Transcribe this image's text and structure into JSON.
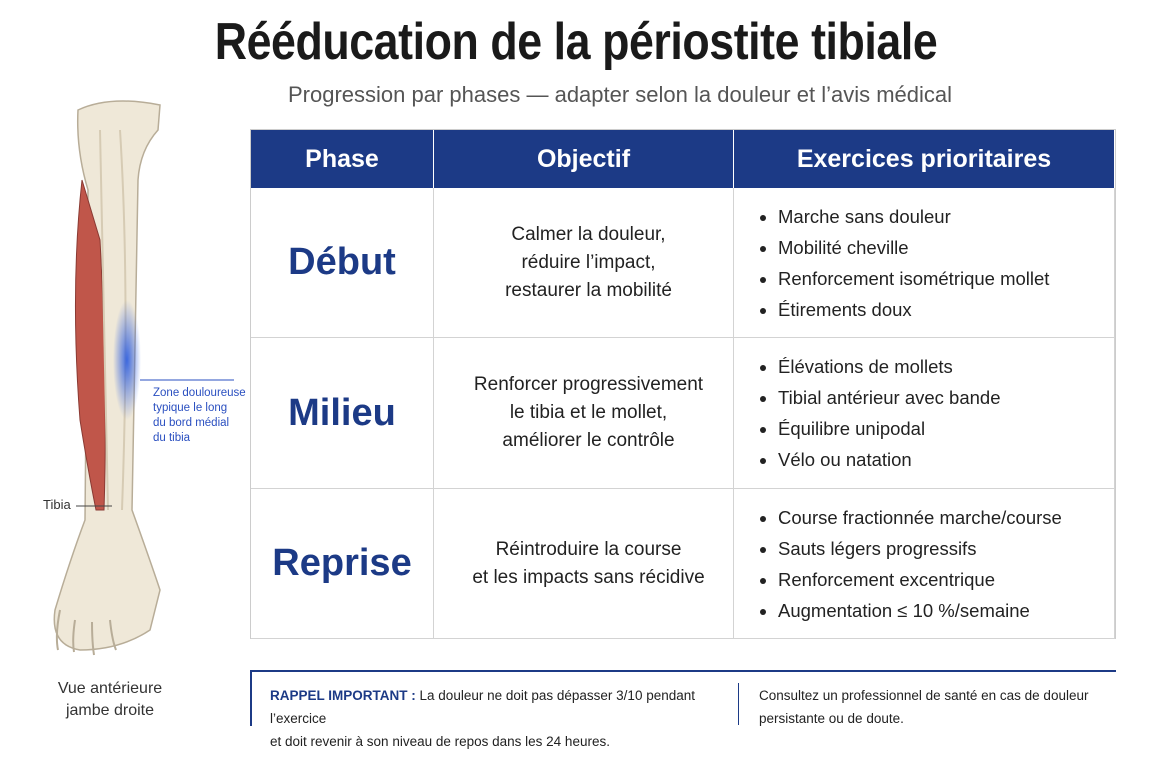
{
  "header": {
    "title": "Rééducation de la périostite tibiale",
    "subtitle": "Progression par phases — adapter selon la douleur et l’avis médical"
  },
  "illustration": {
    "zone_label": [
      "Zone douloureuse",
      "typique le long",
      "du bord médial",
      "du tibia"
    ],
    "tibia_label": "Tibia",
    "caption": [
      "Vue antérieure",
      "jambe droite"
    ]
  },
  "table": {
    "headers": [
      "Phase",
      "Objectif",
      "Exercices prioritaires"
    ],
    "rows": [
      {
        "phase": "Début",
        "objectif": [
          "Calmer la douleur,",
          "réduire l’impact,",
          "restaurer la mobilité"
        ],
        "exercices": [
          "Marche sans douleur",
          "Mobilité cheville",
          "Renforcement isométrique mollet",
          "Étirements doux"
        ]
      },
      {
        "phase": "Milieu",
        "objectif": [
          "Renforcer progressivement",
          "le tibia et le mollet,",
          "améliorer le contrôle"
        ],
        "exercices": [
          "Élévations de mollets",
          "Tibial antérieur avec bande",
          "Équilibre unipodal",
          "Vélo ou natation"
        ]
      },
      {
        "phase": "Reprise",
        "objectif": [
          "Réintroduire la course",
          "et les impacts sans récidive"
        ],
        "exercices": [
          "Course fractionnée marche/course",
          "Sauts légers progressifs",
          "Renforcement excentrique",
          "Augmentation ≤ 10 %/semaine"
        ]
      }
    ]
  },
  "footer": {
    "label": "RAPPEL IMPORTANT :",
    "text": [
      "La douleur ne doit pas dépasser 3/10 pendant l’exercice",
      "et doit revenir à son niveau de repos dans les 24 heures."
    ],
    "note": [
      "Consultez un professionnel de santé en cas de douleur",
      "persistante ou de doute."
    ]
  }
}
